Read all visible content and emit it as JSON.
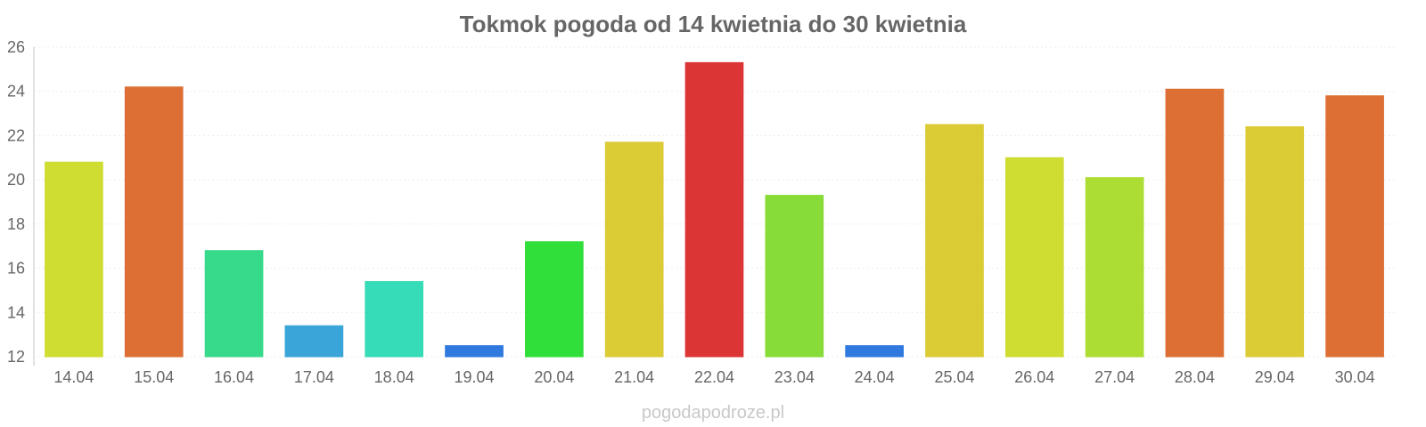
{
  "chart_data": {
    "type": "bar",
    "title": "Tokmok pogoda od 14 kwietnia do 30 kwietnia",
    "xlabel": "",
    "ylabel": "",
    "categories": [
      "14.04",
      "15.04",
      "16.04",
      "17.04",
      "18.04",
      "19.04",
      "20.04",
      "21.04",
      "22.04",
      "23.04",
      "24.04",
      "25.04",
      "26.04",
      "27.04",
      "28.04",
      "29.04",
      "30.04"
    ],
    "values": [
      20.8,
      24.2,
      16.8,
      13.4,
      15.4,
      12.5,
      17.2,
      21.7,
      25.3,
      19.3,
      12.5,
      22.5,
      21.0,
      20.1,
      24.1,
      22.4,
      23.8
    ],
    "colors": [
      "#cfdd32",
      "#dd6f35",
      "#37d98a",
      "#39a5d8",
      "#36dbb7",
      "#2f79df",
      "#30df3a",
      "#dbcb34",
      "#dc3535",
      "#88dc37",
      "#2f79df",
      "#dbcb34",
      "#cfdd32",
      "#acdd32",
      "#dd6f35",
      "#dbcb34",
      "#dd6f35"
    ],
    "yticks": [
      12,
      14,
      16,
      18,
      20,
      22,
      24,
      26
    ],
    "ylim": [
      12,
      26
    ],
    "grid": true,
    "legend": "none"
  },
  "watermark": "pogodapodroze.pl"
}
